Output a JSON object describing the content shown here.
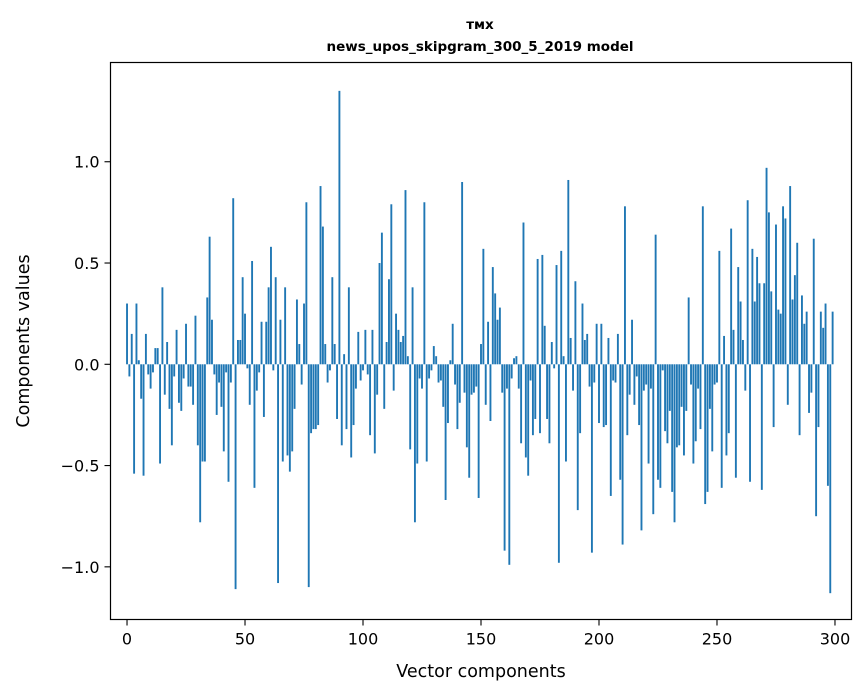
{
  "chart_data": {
    "type": "bar",
    "title": "тмх",
    "subtitle": "news_upos_skipgram_300_5_2019 model",
    "xlabel": "Vector components",
    "ylabel": "Components values",
    "xlim": [
      -7,
      307
    ],
    "ylim": [
      -1.26,
      1.49
    ],
    "xticks": [
      0,
      50,
      100,
      150,
      200,
      250,
      300
    ],
    "xtick_labels": [
      "0",
      "50",
      "100",
      "150",
      "200",
      "250",
      "300"
    ],
    "yticks": [
      -1.0,
      -0.5,
      0.0,
      0.5,
      1.0
    ],
    "ytick_labels": [
      "−1.0",
      "−0.5",
      "0.0",
      "0.5",
      "1.0"
    ],
    "bar_color": "#1f77b4",
    "values": [
      0.3,
      -0.06,
      0.15,
      -0.54,
      0.3,
      0.02,
      -0.17,
      -0.55,
      0.15,
      -0.05,
      -0.12,
      -0.04,
      0.08,
      0.08,
      -0.49,
      0.38,
      -0.15,
      0.11,
      -0.22,
      -0.4,
      -0.06,
      0.17,
      -0.19,
      -0.23,
      -0.07,
      0.2,
      -0.11,
      -0.11,
      -0.2,
      0.24,
      -0.4,
      -0.78,
      -0.48,
      -0.48,
      0.33,
      0.63,
      0.22,
      -0.05,
      -0.25,
      -0.09,
      -0.21,
      -0.43,
      -0.04,
      -0.58,
      -0.09,
      0.82,
      -1.11,
      0.12,
      0.12,
      0.43,
      0.25,
      -0.02,
      -0.2,
      0.51,
      -0.61,
      -0.13,
      -0.04,
      0.21,
      -0.26,
      0.21,
      0.38,
      0.58,
      -0.03,
      0.43,
      -1.08,
      0.22,
      -0.48,
      0.38,
      -0.45,
      -0.53,
      -0.43,
      -0.22,
      0.32,
      0.1,
      -0.1,
      0.3,
      0.8,
      -1.1,
      -0.34,
      -0.32,
      -0.32,
      -0.3,
      0.88,
      0.68,
      0.1,
      -0.09,
      -0.03,
      0.43,
      0.1,
      -0.27,
      1.35,
      -0.4,
      0.05,
      -0.32,
      0.38,
      -0.46,
      -0.3,
      -0.12,
      0.16,
      -0.08,
      -0.03,
      0.17,
      -0.05,
      -0.35,
      0.17,
      -0.44,
      -0.15,
      0.5,
      0.65,
      -0.22,
      0.11,
      0.42,
      0.79,
      -0.13,
      0.25,
      0.17,
      0.11,
      0.14,
      0.86,
      0.04,
      -0.42,
      0.38,
      -0.78,
      -0.49,
      -0.07,
      -0.12,
      0.8,
      -0.48,
      -0.07,
      -0.03,
      0.09,
      0.04,
      -0.09,
      -0.08,
      -0.21,
      -0.67,
      -0.29,
      0.02,
      0.2,
      -0.1,
      -0.32,
      -0.19,
      0.9,
      -0.14,
      -0.41,
      -0.56,
      -0.15,
      -0.14,
      -0.11,
      -0.66,
      0.1,
      0.57,
      -0.2,
      0.21,
      -0.28,
      0.48,
      0.35,
      0.22,
      0.28,
      -0.14,
      -0.92,
      -0.12,
      -0.99,
      -0.07,
      0.03,
      0.04,
      -0.12,
      -0.39,
      0.7,
      -0.46,
      -0.55,
      -0.08,
      -0.35,
      -0.27,
      0.52,
      -0.34,
      0.54,
      0.19,
      -0.27,
      -0.39,
      0.11,
      -0.02,
      0.49,
      -0.98,
      0.56,
      0.04,
      -0.48,
      0.91,
      0.13,
      -0.13,
      0.41,
      -0.72,
      -0.34,
      0.3,
      0.12,
      0.15,
      -0.11,
      -0.93,
      -0.09,
      0.2,
      -0.29,
      0.2,
      -0.31,
      -0.3,
      0.13,
      -0.65,
      -0.08,
      -0.09,
      0.15,
      -0.57,
      -0.89,
      0.78,
      -0.35,
      -0.15,
      0.22,
      -0.2,
      -0.06,
      -0.3,
      -0.82,
      -0.13,
      -0.1,
      -0.49,
      -0.12,
      -0.74,
      0.64,
      -0.57,
      -0.61,
      -0.03,
      -0.33,
      -0.39,
      -0.23,
      -0.63,
      -0.78,
      -0.41,
      -0.4,
      -0.21,
      -0.45,
      -0.23,
      0.33,
      -0.1,
      -0.49,
      -0.38,
      -0.12,
      -0.32,
      0.78,
      -0.69,
      -0.63,
      -0.22,
      -0.43,
      -0.1,
      -0.09,
      0.56,
      -0.61,
      0.14,
      -0.45,
      -0.34,
      0.67,
      0.17,
      -0.56,
      0.48,
      0.31,
      0.12,
      -0.13,
      0.81,
      -0.58,
      0.57,
      0.31,
      0.53,
      0.4,
      -0.62,
      0.4,
      0.97,
      0.75,
      0.36,
      -0.31,
      0.69,
      0.27,
      0.25,
      0.78,
      0.72,
      -0.2,
      0.88,
      0.32,
      0.44,
      0.6,
      -0.35,
      0.34,
      0.2,
      0.26,
      -0.24,
      -0.14,
      0.62,
      -0.75,
      -0.31,
      0.26,
      0.18,
      0.3,
      -0.6,
      -1.13,
      0.26
    ]
  }
}
